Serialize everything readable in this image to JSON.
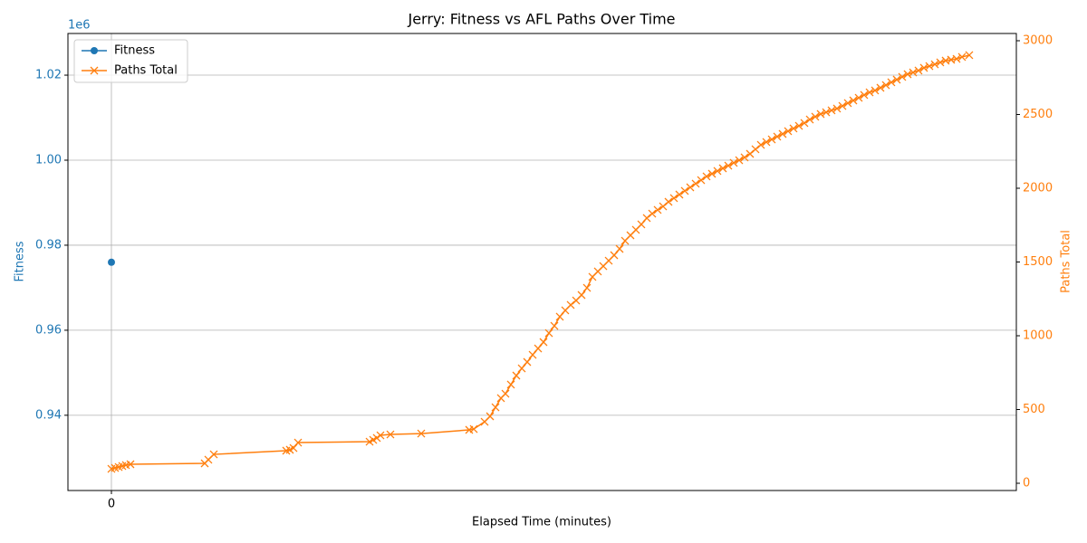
{
  "chart_data": {
    "type": "line",
    "title": "Jerry: Fitness vs AFL Paths Over Time",
    "x_label": "Elapsed Time (minutes)",
    "y_label": "Fitness",
    "y2_label": "Paths Total",
    "y_offset_label": "1e6",
    "xlim": [
      -4.8,
      99.9
    ],
    "xticks": [
      0
    ],
    "ylim": [
      922300,
      1029800
    ],
    "yticks": [
      {
        "value": 940000,
        "label": "0.94"
      },
      {
        "value": 960000,
        "label": "0.96"
      },
      {
        "value": 980000,
        "label": "0.98"
      },
      {
        "value": 1000000,
        "label": "1.00"
      },
      {
        "value": 1020000,
        "label": "1.02"
      }
    ],
    "y2lim": [
      -49,
      3049
    ],
    "y2ticks": [
      0,
      500,
      1000,
      1500,
      2000,
      2500,
      3000
    ],
    "grid": true,
    "legend": "upper left",
    "series": [
      {
        "name": "Fitness",
        "color": "#1f77b4",
        "marker": "circle",
        "x": [
          0
        ],
        "values": [
          976000
        ]
      },
      {
        "name": "Paths Total",
        "color": "#ff7f0e",
        "marker": "x",
        "axis": "y2",
        "x": [
          0,
          0.4,
          0.8,
          1.2,
          1.6,
          2.1,
          10.3,
          10.7,
          11.3,
          19.3,
          19.7,
          20.1,
          20.6,
          28.5,
          28.9,
          29.3,
          29.7,
          30.8,
          34.2,
          39.5,
          40,
          41.2,
          41.8,
          42.4,
          43,
          43.5,
          44.1,
          44.7,
          45.3,
          45.9,
          46.5,
          47.1,
          47.7,
          48.3,
          48.9,
          49.5,
          50.1,
          50.7,
          51.3,
          51.9,
          52.5,
          53.1,
          53.7,
          54.3,
          54.9,
          55.5,
          56.1,
          56.7,
          57.3,
          57.9,
          58.5,
          59.1,
          59.7,
          60.3,
          60.9,
          61.5,
          62.1,
          62.7,
          63.3,
          63.9,
          64.5,
          65.1,
          65.7,
          66.3,
          66.9,
          67.5,
          68.1,
          68.7,
          69.3,
          69.9,
          70.5,
          71.1,
          71.7,
          72.3,
          72.9,
          73.5,
          74.1,
          74.7,
          75.3,
          75.9,
          76.5,
          77.1,
          77.7,
          78.3,
          78.9,
          79.5,
          80.1,
          80.7,
          81.3,
          81.9,
          82.5,
          83.1,
          83.7,
          84.3,
          84.9,
          85.5,
          86.1,
          86.7,
          87.3,
          87.9,
          88.5,
          89.1,
          89.7,
          90.3,
          90.9,
          91.5,
          92.1,
          92.7,
          93.3,
          93.9,
          94.7
        ],
        "values": [
          98,
          104,
          110,
          117,
          123,
          129,
          135,
          160,
          196,
          221,
          227,
          239,
          276,
          282,
          294,
          307,
          325,
          331,
          337,
          362,
          368,
          417,
          454,
          515,
          577,
          607,
          669,
          730,
          779,
          822,
          871,
          914,
          957,
          1018,
          1067,
          1129,
          1172,
          1209,
          1239,
          1276,
          1325,
          1399,
          1436,
          1472,
          1509,
          1546,
          1589,
          1644,
          1681,
          1718,
          1755,
          1798,
          1828,
          1853,
          1877,
          1908,
          1933,
          1957,
          1982,
          2006,
          2031,
          2055,
          2080,
          2098,
          2117,
          2135,
          2153,
          2172,
          2190,
          2209,
          2233,
          2264,
          2294,
          2313,
          2331,
          2350,
          2368,
          2387,
          2405,
          2423,
          2442,
          2466,
          2485,
          2503,
          2515,
          2528,
          2540,
          2558,
          2577,
          2595,
          2613,
          2632,
          2650,
          2663,
          2681,
          2699,
          2718,
          2736,
          2755,
          2773,
          2785,
          2798,
          2816,
          2828,
          2840,
          2853,
          2865,
          2871,
          2877,
          2890,
          2902
        ]
      }
    ]
  }
}
